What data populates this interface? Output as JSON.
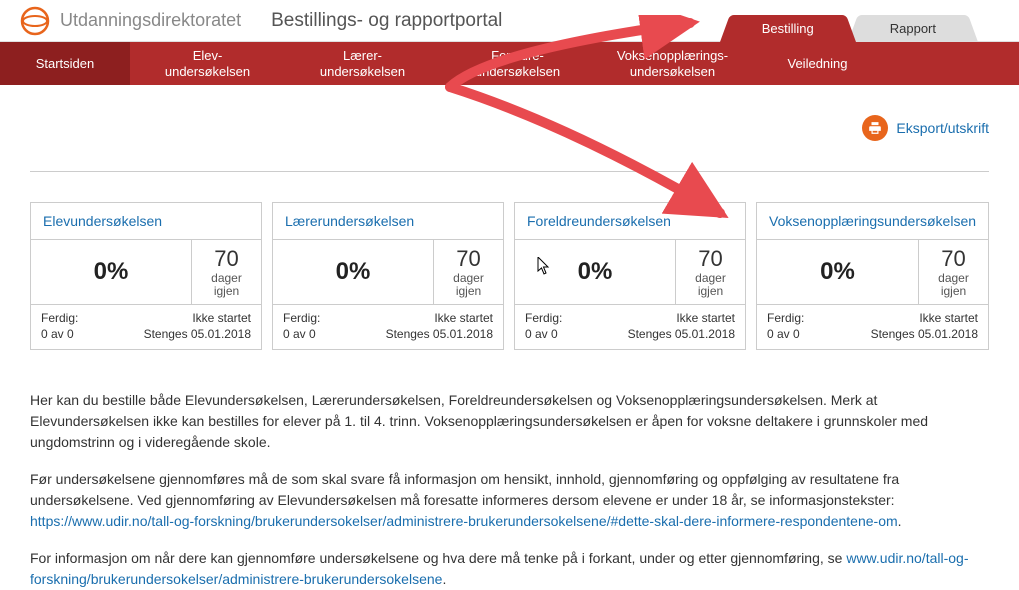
{
  "brand": {
    "name": "Utdanningsdirektoratet",
    "portal_title": "Bestillings- og rapportportal",
    "logo_color": "#e8651c"
  },
  "top_tabs": {
    "active": "Bestilling",
    "inactive": "Rapport"
  },
  "nav": {
    "items": [
      {
        "label": "Startsiden",
        "active": true
      },
      {
        "label": "Elev-\nundersøkelsen",
        "active": false
      },
      {
        "label": "Lærer-\nundersøkelsen",
        "active": false
      },
      {
        "label": "Foreldre-\nundersøkelsen",
        "active": false
      },
      {
        "label": "Voksenopplærings-\nundersøkelsen",
        "active": false
      },
      {
        "label": "Veiledning",
        "active": false
      }
    ]
  },
  "export": {
    "label": "Eksport/utskrift"
  },
  "cards": [
    {
      "title": "Elevundersøkelsen",
      "percent": "0%",
      "days_num": "70",
      "days_label1": "dager",
      "days_label2": "igjen",
      "ferdig_label": "Ferdig:",
      "ferdig_val": "0 av 0",
      "status": "Ikke startet",
      "stenges": "Stenges 05.01.2018"
    },
    {
      "title": "Lærerundersøkelsen",
      "percent": "0%",
      "days_num": "70",
      "days_label1": "dager",
      "days_label2": "igjen",
      "ferdig_label": "Ferdig:",
      "ferdig_val": "0 av 0",
      "status": "Ikke startet",
      "stenges": "Stenges 05.01.2018"
    },
    {
      "title": "Foreldreundersøkelsen",
      "percent": "0%",
      "days_num": "70",
      "days_label1": "dager",
      "days_label2": "igjen",
      "ferdig_label": "Ferdig:",
      "ferdig_val": "0 av 0",
      "status": "Ikke startet",
      "stenges": "Stenges 05.01.2018"
    },
    {
      "title": "Voksenopplæringsundersøkelsen",
      "percent": "0%",
      "days_num": "70",
      "days_label1": "dager",
      "days_label2": "igjen",
      "ferdig_label": "Ferdig:",
      "ferdig_val": "0 av 0",
      "status": "Ikke startet",
      "stenges": "Stenges 05.01.2018"
    }
  ],
  "body": {
    "p1": "Her kan du bestille både Elevundersøkelsen, Lærerundersøkelsen, Foreldreundersøkelsen og Voksenopplæringsundersøkelsen. Merk at Elevundersøkelsen ikke kan bestilles for elever på 1. til 4. trinn. Voksenopplæringsundersøkelsen er åpen for voksne deltakere i grunnskoler med ungdomstrinn og i videregående skole.",
    "p2": "Før undersøkelsene gjennomføres må de som skal svare få informasjon om hensikt, innhold, gjennomføring og oppfølging av resultatene fra undersøkelsene. Ved gjennomføring av Elevundersøkelsen må foresatte informeres dersom elevene er under 18 år, se informasjonstekster:",
    "link1": "https://www.udir.no/tall-og-forskning/brukerundersokelser/administrere-brukerundersokelsene/#dette-skal-dere-informere-respondentene-om",
    "p3a": "For informasjon om når dere kan gjennomføre undersøkelsene og hva dere må tenke på i forkant, under og etter gjennomføring, se ",
    "link2": "www.udir.no/tall-og-forskning/brukerundersokelser/administrere-brukerundersokelsene"
  },
  "colors": {
    "nav_bg": "#b12c2c",
    "nav_active": "#8d1f1f",
    "link": "#1a6eae",
    "accent": "#e8651c",
    "arrow": "#e84a4f"
  }
}
